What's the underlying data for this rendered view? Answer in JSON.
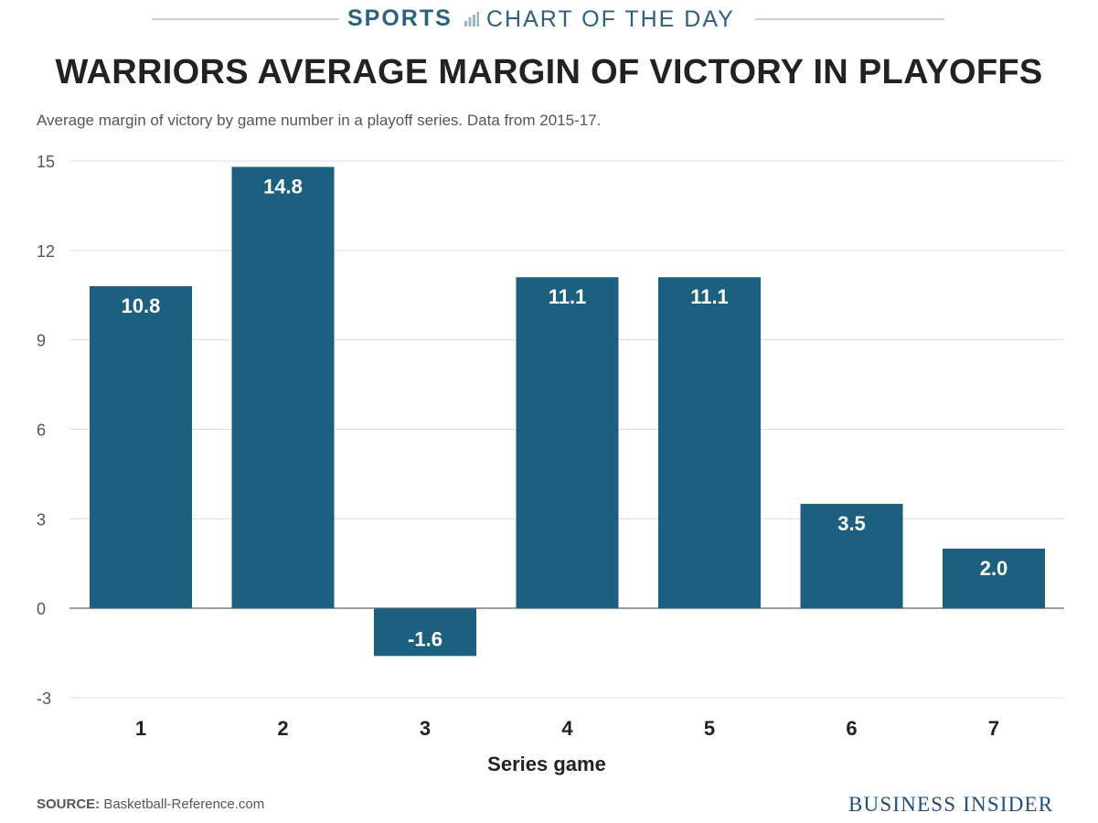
{
  "header": {
    "section": "SPORTS",
    "series": "CHART OF THE DAY"
  },
  "colors": {
    "bar": "#1d5f7e",
    "accent": "#2c6180",
    "grid": "#dcdcdc",
    "zero_line": "#9a9a9a"
  },
  "footer": {
    "source_label": "SOURCE:",
    "source_text": " Basketball-Reference.com",
    "brand": "BUSINESS INSIDER"
  },
  "chart_data": {
    "type": "bar",
    "title": "WARRIORS AVERAGE MARGIN OF VICTORY IN PLAYOFFS",
    "subtitle": "Average margin of victory by game number in a playoff series. Data from 2015-17.",
    "xlabel": "Series game",
    "ylabel": "",
    "categories": [
      "1",
      "2",
      "3",
      "4",
      "5",
      "6",
      "7"
    ],
    "values": [
      10.8,
      14.8,
      -1.6,
      11.1,
      11.1,
      3.5,
      2.0
    ],
    "data_labels": [
      "10.8",
      "14.8",
      "-1.6",
      "11.1",
      "11.1",
      "3.5",
      "2.0"
    ],
    "ylim": [
      -3,
      15
    ],
    "yticks": [
      15,
      12,
      9,
      6,
      3,
      0,
      -3
    ],
    "grid": true,
    "legend": "none"
  }
}
